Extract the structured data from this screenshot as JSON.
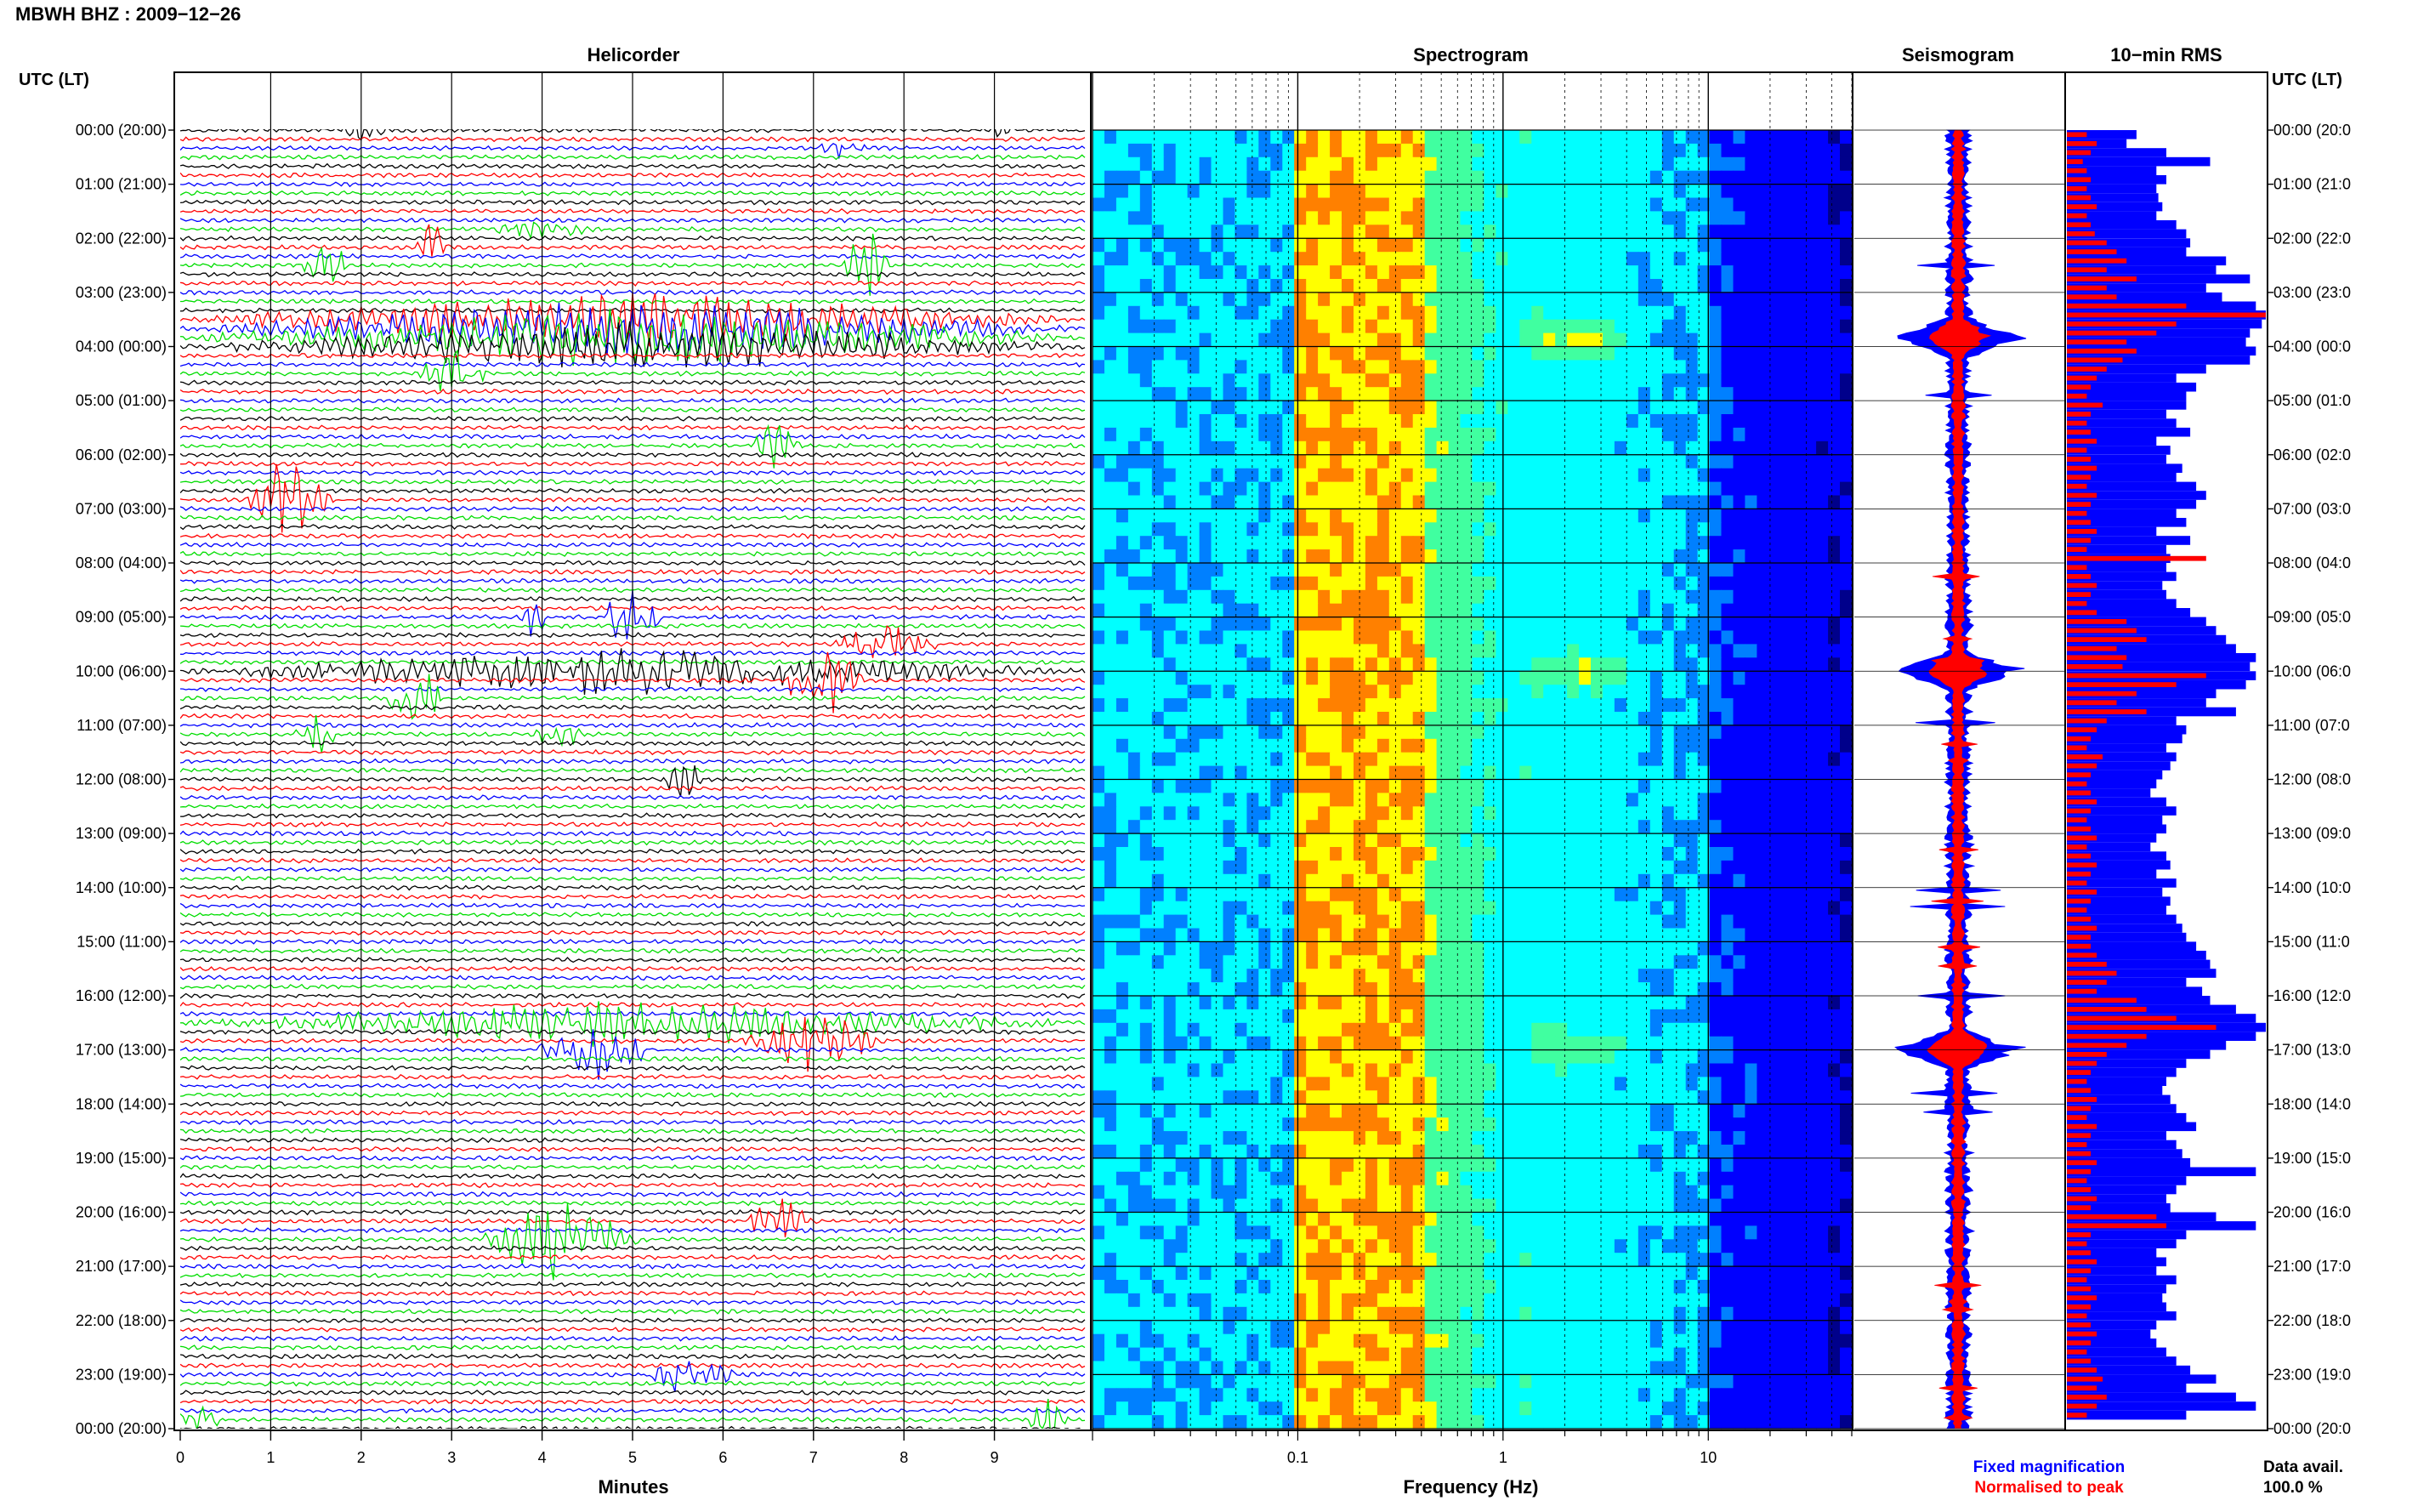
{
  "header": {
    "station_title": "MBWH BHZ : 2009−12−26",
    "utc_left": "UTC (LT)",
    "utc_right": "UTC (LT)"
  },
  "legend": {
    "fixed": "Fixed magnification",
    "normalised": "Normalised to peak",
    "data_avail_label": "Data avail.",
    "data_avail_value": "100.0 %"
  },
  "colors": {
    "trace_cycle": [
      "#000000",
      "#ff0000",
      "#0000ff",
      "#00dd00"
    ],
    "fixed": "#0000ff",
    "normalised": "#ff0000",
    "grid": "#000000"
  },
  "chart_data": [
    {
      "type": "line",
      "title": "Helicorder",
      "xlabel": "Minutes",
      "ylabel": "UTC (LT)",
      "xlim": [
        0,
        10
      ],
      "x_ticks": [
        "0",
        "1",
        "2",
        "3",
        "4",
        "5",
        "6",
        "7",
        "8",
        "9"
      ],
      "y_tick_labels": [
        "00:00 (20:00)",
        "01:00 (21:00)",
        "02:00 (22:00)",
        "03:00 (23:00)",
        "04:00 (00:00)",
        "05:00 (01:00)",
        "06:00 (02:00)",
        "07:00 (03:00)",
        "08:00 (04:00)",
        "09:00 (05:00)",
        "10:00 (06:00)",
        "11:00 (07:00)",
        "12:00 (08:00)",
        "13:00 (09:00)",
        "14:00 (10:00)",
        "15:00 (11:00)",
        "16:00 (12:00)",
        "17:00 (13:00)",
        "18:00 (14:00)",
        "19:00 (15:00)",
        "20:00 (16:00)",
        "21:00 (17:00)",
        "22:00 (18:00)",
        "23:00 (19:00)",
        "00:00 (20:00)"
      ],
      "y_tick_labels_right": [
        "00:00 (20:0",
        "01:00 (21:0",
        "02:00 (22:0",
        "03:00 (23:0",
        "04:00 (00:0",
        "05:00 (01:0",
        "06:00 (02:0",
        "07:00 (03:0",
        "08:00 (04:0",
        "09:00 (05:0",
        "10:00 (06:0",
        "11:00 (07:0",
        "12:00 (08:0",
        "13:00 (09:0",
        "14:00 (10:0",
        "15:00 (11:0",
        "16:00 (12:0",
        "17:00 (13:0",
        "18:00 (14:0",
        "19:00 (15:0",
        "20:00 (16:0",
        "21:00 (17:0",
        "22:00 (18:0",
        "23:00 (19:0",
        "00:00 (20:0"
      ],
      "rows_per_hour": 6,
      "grid": true,
      "events": [
        {
          "hour": 0.0,
          "min": 2.0,
          "width": 0.6,
          "amp": 1.2,
          "color": "#000000"
        },
        {
          "hour": 0.0,
          "min": 9.1,
          "width": 0.3,
          "amp": 1.0,
          "color": "#000000"
        },
        {
          "hour": 0.33,
          "min": 7.3,
          "width": 0.6,
          "amp": 1.2,
          "color": "#00dd00"
        },
        {
          "hour": 1.9,
          "min": 4.0,
          "width": 1.2,
          "amp": 1.0,
          "color": "#000000"
        },
        {
          "hour": 2.17,
          "min": 2.8,
          "width": 0.4,
          "amp": 3.0,
          "color": "#000000"
        },
        {
          "hour": 2.5,
          "min": 1.6,
          "width": 0.5,
          "amp": 4.0,
          "color": "#ff0000"
        },
        {
          "hour": 2.5,
          "min": 7.6,
          "width": 0.6,
          "amp": 4.0,
          "color": "#ff0000"
        },
        {
          "hour": 3.5,
          "min": 5.0,
          "width": 10.0,
          "amp": 2.5,
          "color": "#0000ff"
        },
        {
          "hour": 3.67,
          "min": 5.0,
          "width": 10.0,
          "amp": 2.5,
          "color": "#00dd00"
        },
        {
          "hour": 3.83,
          "min": 5.0,
          "width": 10.0,
          "amp": 2.5,
          "color": "#000000"
        },
        {
          "hour": 4.0,
          "min": 5.0,
          "width": 10.0,
          "amp": 2.2,
          "color": "#ff0000"
        },
        {
          "hour": 4.5,
          "min": 3.0,
          "width": 0.8,
          "amp": 3.0,
          "color": "#000000"
        },
        {
          "hour": 5.83,
          "min": 6.6,
          "width": 0.6,
          "amp": 2.5,
          "color": "#000000"
        },
        {
          "hour": 6.83,
          "min": 1.2,
          "width": 1.0,
          "amp": 4.0,
          "color": "#ff0000"
        },
        {
          "hour": 9.0,
          "min": 3.9,
          "width": 0.4,
          "amp": 2.0,
          "color": "#0000ff"
        },
        {
          "hour": 9.0,
          "min": 5.0,
          "width": 0.8,
          "amp": 3.0,
          "color": "#00dd00"
        },
        {
          "hour": 9.5,
          "min": 7.8,
          "width": 1.2,
          "amp": 2.5,
          "color": "#000000"
        },
        {
          "hour": 10.0,
          "min": 5.0,
          "width": 10.0,
          "amp": 2.0,
          "color": "#ff0000"
        },
        {
          "hour": 10.17,
          "min": 7.1,
          "width": 1.0,
          "amp": 4.0,
          "color": "#00dd00"
        },
        {
          "hour": 10.5,
          "min": 2.6,
          "width": 0.7,
          "amp": 3.5,
          "color": "#ff0000"
        },
        {
          "hour": 11.17,
          "min": 1.5,
          "width": 0.5,
          "amp": 2.0,
          "color": "#ff0000"
        },
        {
          "hour": 11.17,
          "min": 4.2,
          "width": 0.6,
          "amp": 1.8,
          "color": "#ff0000"
        },
        {
          "hour": 12.0,
          "min": 5.6,
          "width": 0.6,
          "amp": 2.0,
          "color": "#ff0000"
        },
        {
          "hour": 17.0,
          "min": 4.6,
          "width": 1.4,
          "amp": 3.0,
          "color": "#0000ff"
        },
        {
          "hour": 16.83,
          "min": 7.0,
          "width": 1.6,
          "amp": 3.0,
          "color": "#ff0000"
        },
        {
          "hour": 16.5,
          "min": 5.0,
          "width": 10.0,
          "amp": 2.0,
          "color": "#000000"
        },
        {
          "hour": 20.17,
          "min": 6.6,
          "width": 0.8,
          "amp": 2.5,
          "color": "#000000"
        },
        {
          "hour": 20.5,
          "min": 4.2,
          "width": 1.8,
          "amp": 4.0,
          "color": "#000000"
        },
        {
          "hour": 23.0,
          "min": 5.6,
          "width": 1.2,
          "amp": 2.0,
          "color": "#0000ff"
        },
        {
          "hour": 23.83,
          "min": 0.2,
          "width": 0.5,
          "amp": 2.5,
          "color": "#0000ff"
        },
        {
          "hour": 23.83,
          "min": 9.6,
          "width": 0.5,
          "amp": 2.5,
          "color": "#ff0000"
        }
      ]
    },
    {
      "type": "heatmap",
      "title": "Spectrogram",
      "xlabel": "Frequency (Hz)",
      "x_scale": "log",
      "xlim": [
        0.01,
        50
      ],
      "x_ticks": [
        {
          "value": 0.1,
          "label": "0.1"
        },
        {
          "value": 1,
          "label": "1"
        },
        {
          "value": 10,
          "label": "10"
        }
      ],
      "ylim_hours": [
        0,
        24
      ],
      "colormap": [
        "#00008b",
        "#0000ff",
        "#0080ff",
        "#00ffff",
        "#40ffa0",
        "#ffff00",
        "#ff8000",
        "#ff0000"
      ],
      "hot_spots": [
        {
          "hour": 3.83,
          "freq": 2.5,
          "strength": 1.0
        },
        {
          "hour": 10.0,
          "freq": 2.5,
          "strength": 0.8
        },
        {
          "hour": 17.0,
          "freq": 2.5,
          "strength": 0.8
        }
      ]
    },
    {
      "type": "line",
      "title": "Seismogram",
      "series": [
        {
          "name": "Fixed magnification",
          "color": "#0000ff"
        },
        {
          "name": "Normalised to peak",
          "color": "#ff0000"
        }
      ],
      "bursts_hours": [
        3.83,
        10.0,
        17.0
      ]
    },
    {
      "type": "bar",
      "title": "10−min RMS",
      "orientation": "horizontal",
      "bins_per_hour": 6,
      "series": [
        {
          "name": "Fixed magnification",
          "color": "#0000ff",
          "values": [
            0.35,
            0.3,
            0.5,
            0.72,
            0.45,
            0.5,
            0.45,
            0.46,
            0.48,
            0.45,
            0.55,
            0.6,
            0.62,
            0.6,
            0.8,
            0.75,
            0.92,
            0.7,
            0.78,
            0.95,
            1.0,
            0.98,
            0.92,
            0.9,
            0.95,
            0.92,
            0.7,
            0.55,
            0.65,
            0.6,
            0.6,
            0.5,
            0.55,
            0.62,
            0.45,
            0.52,
            0.5,
            0.58,
            0.55,
            0.65,
            0.7,
            0.65,
            0.55,
            0.6,
            0.45,
            0.62,
            0.5,
            0.52,
            0.5,
            0.55,
            0.48,
            0.5,
            0.55,
            0.62,
            0.7,
            0.75,
            0.8,
            0.85,
            0.95,
            0.92,
            0.95,
            0.9,
            0.75,
            0.7,
            0.85,
            0.55,
            0.6,
            0.58,
            0.5,
            0.55,
            0.52,
            0.48,
            0.45,
            0.42,
            0.5,
            0.55,
            0.48,
            0.5,
            0.45,
            0.42,
            0.5,
            0.52,
            0.45,
            0.55,
            0.48,
            0.52,
            0.5,
            0.55,
            0.58,
            0.6,
            0.65,
            0.7,
            0.72,
            0.75,
            0.6,
            0.68,
            0.72,
            0.85,
            0.95,
            1.0,
            0.95,
            0.8,
            0.72,
            0.6,
            0.55,
            0.5,
            0.48,
            0.52,
            0.55,
            0.6,
            0.65,
            0.5,
            0.55,
            0.58,
            0.62,
            0.95,
            0.6,
            0.55,
            0.5,
            0.52,
            0.75,
            0.95,
            0.6,
            0.55,
            0.45,
            0.5,
            0.45,
            0.55,
            0.5,
            0.48,
            0.5,
            0.55,
            0.45,
            0.42,
            0.45,
            0.5,
            0.55,
            0.62,
            0.75,
            0.6,
            0.85,
            0.95,
            0.6
          ]
        },
        {
          "name": "Normalised to peak",
          "color": "#ff0000",
          "values": [
            0.1,
            0.15,
            0.12,
            0.08,
            0.1,
            0.12,
            0.1,
            0.12,
            0.15,
            0.1,
            0.12,
            0.14,
            0.2,
            0.25,
            0.3,
            0.2,
            0.35,
            0.2,
            0.25,
            0.6,
            1.0,
            0.55,
            0.45,
            0.3,
            0.35,
            0.28,
            0.2,
            0.15,
            0.12,
            0.1,
            0.18,
            0.12,
            0.1,
            0.12,
            0.15,
            0.1,
            0.12,
            0.15,
            0.12,
            0.1,
            0.15,
            0.12,
            0.1,
            0.12,
            0.15,
            0.12,
            0.1,
            0.7,
            0.1,
            0.12,
            0.15,
            0.12,
            0.1,
            0.15,
            0.3,
            0.35,
            0.4,
            0.25,
            0.3,
            0.28,
            0.7,
            0.55,
            0.35,
            0.25,
            0.4,
            0.2,
            0.15,
            0.12,
            0.1,
            0.18,
            0.15,
            0.12,
            0.1,
            0.12,
            0.15,
            0.12,
            0.1,
            0.12,
            0.15,
            0.1,
            0.12,
            0.15,
            0.12,
            0.1,
            0.15,
            0.12,
            0.1,
            0.12,
            0.15,
            0.12,
            0.12,
            0.15,
            0.2,
            0.25,
            0.2,
            0.15,
            0.35,
            0.4,
            0.55,
            0.75,
            0.4,
            0.3,
            0.2,
            0.15,
            0.12,
            0.1,
            0.12,
            0.15,
            0.12,
            0.1,
            0.15,
            0.12,
            0.1,
            0.12,
            0.15,
            0.12,
            0.1,
            0.12,
            0.15,
            0.12,
            0.45,
            0.5,
            0.12,
            0.1,
            0.12,
            0.15,
            0.12,
            0.1,
            0.12,
            0.15,
            0.12,
            0.1,
            0.12,
            0.15,
            0.12,
            0.1,
            0.12,
            0.15,
            0.18,
            0.15,
            0.2,
            0.15,
            0.1
          ]
        }
      ]
    }
  ]
}
